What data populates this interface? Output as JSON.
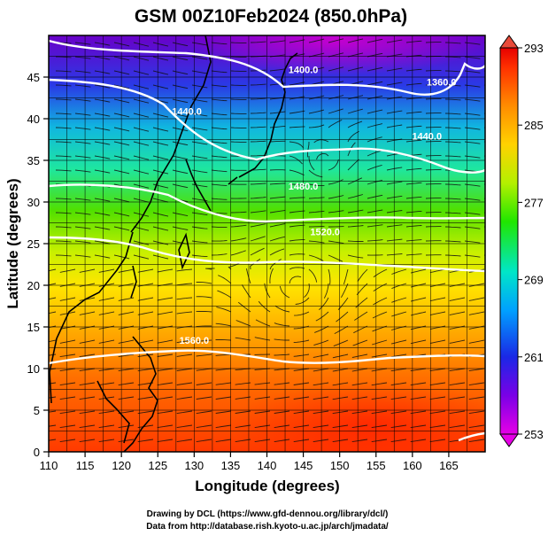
{
  "chart_data": {
    "type": "heatmap",
    "title": "GSM 00Z10Feb2024 (850.0hPa)",
    "xlabel": "Longitude (degrees)",
    "ylabel": "Latitude  (degrees)",
    "xlim": [
      110,
      170
    ],
    "ylim": [
      0,
      50
    ],
    "xticks": [
      "110",
      "115",
      "120",
      "125",
      "130",
      "135",
      "140",
      "145",
      "150",
      "155",
      "160",
      "165"
    ],
    "yticks": [
      "0",
      "5",
      "10",
      "15",
      "20",
      "25",
      "30",
      "35",
      "40",
      "45"
    ],
    "colorbar": {
      "min": 253,
      "max": 293,
      "ticks": [
        "253",
        "261",
        "269",
        "277",
        "285",
        "293"
      ],
      "colors": [
        "#e600e6",
        "#7a00e6",
        "#1a28e6",
        "#00a0ff",
        "#00e6c8",
        "#20e600",
        "#b4f000",
        "#ffd200",
        "#ff8c00",
        "#ff3000",
        "#e60000"
      ]
    },
    "contours": [
      {
        "label": "1400.0",
        "lat": 45.5,
        "lon": 145
      },
      {
        "label": "1360.0",
        "lat": 44,
        "lon": 164
      },
      {
        "label": "1440.0",
        "lat": 40.5,
        "lon": 129
      },
      {
        "label": "1440.0",
        "lat": 37.5,
        "lon": 162
      },
      {
        "label": "1480.0",
        "lat": 31.5,
        "lon": 145
      },
      {
        "label": "1520.0",
        "lat": 26,
        "lon": 148
      },
      {
        "label": "1560.0",
        "lat": 13,
        "lon": 130
      }
    ],
    "credits": [
      "Drawing by DCL (https://www.gfd-dennou.org/library/dcl/)",
      "Data from http://database.rish.kyoto-u.ac.jp/arch/jmadata/"
    ]
  }
}
